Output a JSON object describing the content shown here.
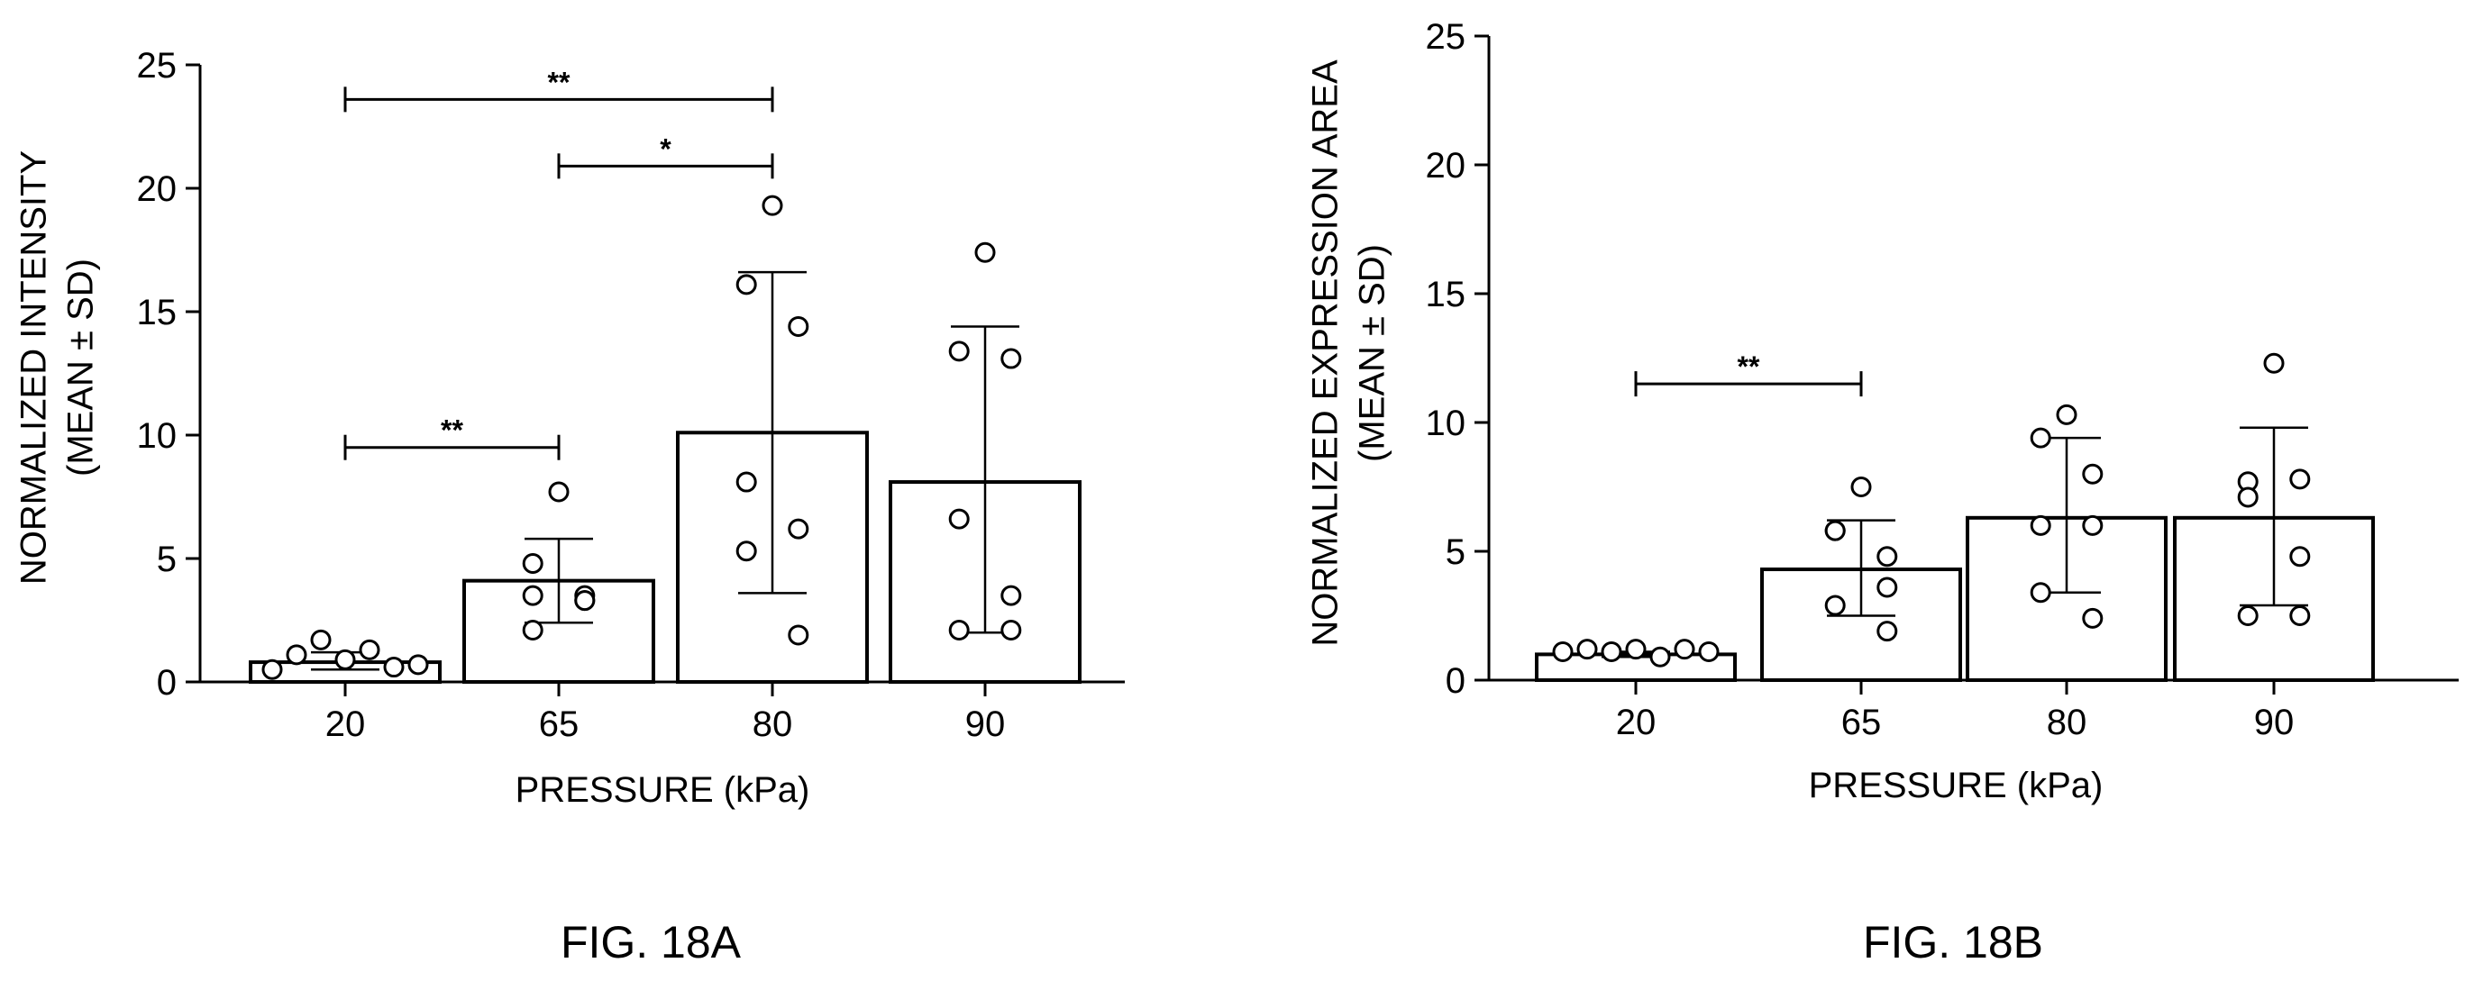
{
  "figure": {
    "captions": [
      "FIG. 18A",
      "FIG. 18B"
    ]
  },
  "chart_data": [
    {
      "type": "bar",
      "caption": "FIG. 18A",
      "xlabel": "PRESSURE (kPa)",
      "ylabel_line1": "NORMALIZED INTENSITY",
      "ylabel_line2": "(MEAN ± SD)",
      "categories": [
        "20",
        "65",
        "80",
        "90"
      ],
      "values": [
        0.8,
        4.1,
        10.1,
        8.1
      ],
      "sd_low": [
        0.5,
        2.4,
        3.6,
        2.0
      ],
      "sd_high": [
        1.2,
        5.8,
        16.6,
        14.4
      ],
      "points": [
        [
          0.5,
          1.1,
          1.7,
          0.9,
          1.3,
          0.6,
          0.7
        ],
        [
          7.7,
          4.8,
          3.5,
          2.1,
          3.3,
          3.5,
          3.3
        ],
        [
          19.3,
          16.1,
          14.4,
          8.1,
          6.2,
          5.3,
          1.9
        ],
        [
          17.4,
          13.4,
          13.1,
          6.6,
          3.5,
          2.1,
          2.1
        ]
      ],
      "ylim": [
        0,
        25
      ],
      "yticks": [
        "0",
        "5",
        "10",
        "15",
        "20",
        "25"
      ],
      "significance": [
        {
          "from": 0,
          "to": 2,
          "y": 23.6,
          "label": "**"
        },
        {
          "from": 1,
          "to": 2,
          "y": 20.9,
          "label": "*"
        },
        {
          "from": 0,
          "to": 1,
          "y": 9.5,
          "label": "**"
        }
      ]
    },
    {
      "type": "bar",
      "caption": "FIG. 18B",
      "xlabel": "PRESSURE (kPa)",
      "ylabel_line1": "NORMALIZED EXPRESSION AREA",
      "ylabel_line2": "(MEAN ± SD)",
      "categories": [
        "20",
        "65",
        "80",
        "90"
      ],
      "values": [
        1.0,
        4.3,
        6.3,
        6.3
      ],
      "sd_low": [
        0.9,
        2.5,
        3.4,
        2.9
      ],
      "sd_high": [
        1.1,
        6.2,
        9.4,
        9.8
      ],
      "points": [
        [
          1.1,
          1.2,
          1.1,
          1.2,
          0.9,
          1.2,
          1.1
        ],
        [
          7.5,
          5.8,
          4.8,
          5.8,
          3.6,
          2.9,
          1.9
        ],
        [
          10.3,
          9.4,
          8.0,
          6.0,
          6.0,
          3.4,
          2.4
        ],
        [
          12.3,
          7.7,
          7.8,
          7.1,
          4.8,
          2.5,
          2.5
        ]
      ],
      "ylim": [
        0,
        25
      ],
      "yticks": [
        "0",
        "5",
        "10",
        "15",
        "20",
        "25"
      ],
      "significance": [
        {
          "from": 0,
          "to": 1,
          "y": 11.5,
          "label": "**"
        }
      ]
    }
  ]
}
